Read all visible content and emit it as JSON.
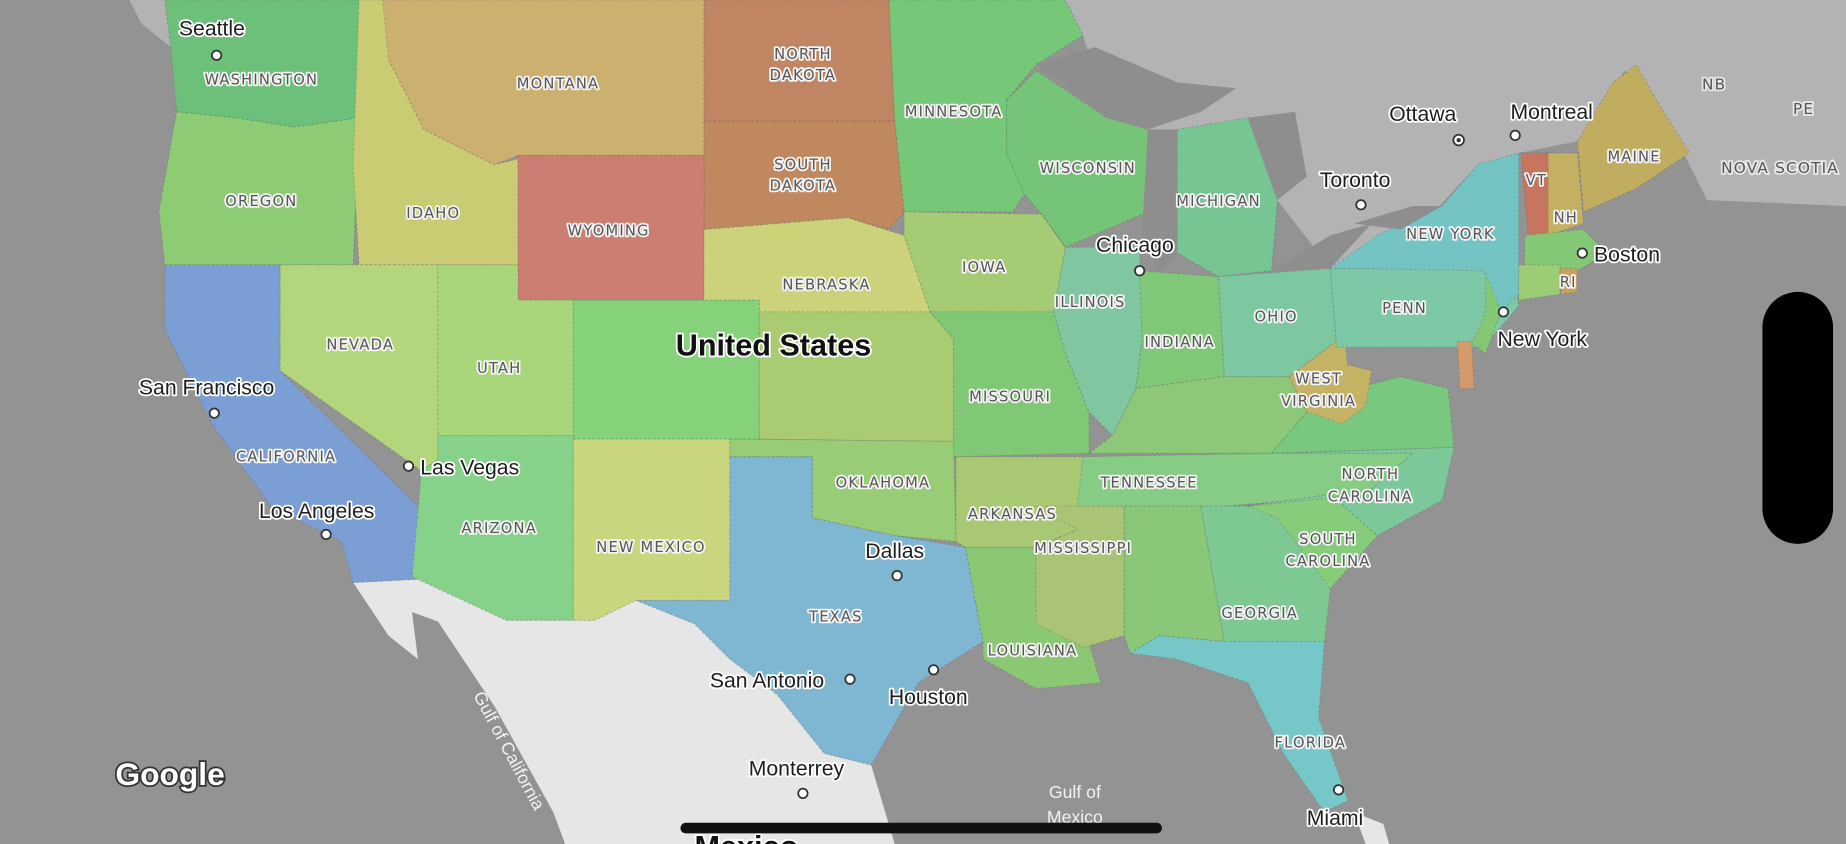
{
  "map": {
    "country_label": "United States",
    "bottom_country_label": "Mexico",
    "attribution": "Google",
    "colors": {
      "ocean": "#939393",
      "canada": "#b3b3b3",
      "lakes": "#8e8e8e",
      "mexico": "#e6e6e6"
    },
    "states": {
      "WA": {
        "label": "WASHINGTON",
        "color": "#6dc07a"
      },
      "OR": {
        "label": "OREGON",
        "color": "#8dcc75"
      },
      "CA": {
        "label": "CALIFORNIA",
        "color": "#7b9fd4"
      },
      "ID": {
        "label": "IDAHO",
        "color": "#c9cc72"
      },
      "MT": {
        "label": "MONTANA",
        "color": "#cbb070"
      },
      "ND": {
        "label": "NORTH DAKOTA",
        "color": "#c08563"
      },
      "SD": {
        "label": "SOUTH DAKOTA",
        "color": "#c0885f"
      },
      "WY": {
        "label": "WYOMING",
        "color": "#cd7e73"
      },
      "NE": {
        "label": "NEBRASKA",
        "color": "#cbd27a"
      },
      "NV": {
        "label": "NEVADA",
        "color": "#b3d67c"
      },
      "UT": {
        "label": "UTAH",
        "color": "#a9d67a"
      },
      "CO": {
        "color": "#85d27a"
      },
      "KS": {
        "color": "#a9cc72"
      },
      "AZ": {
        "label": "ARIZONA",
        "color": "#86d28a"
      },
      "NM": {
        "label": "NEW MEXICO",
        "color": "#cad67d"
      },
      "TX": {
        "label": "TEXAS",
        "color": "#7fb6d2"
      },
      "OK": {
        "label": "OKLAHOMA",
        "color": "#98cc76"
      },
      "MN": {
        "label": "MINNESOTA",
        "color": "#76c778"
      },
      "IA": {
        "label": "IOWA",
        "color": "#a5cc75"
      },
      "MO": {
        "label": "MISSOURI",
        "color": "#81c876"
      },
      "AR": {
        "label": "ARKANSAS",
        "color": "#a8c874"
      },
      "LA": {
        "label": "LOUISIANA",
        "color": "#8ac874"
      },
      "WI": {
        "label": "WISCONSIN",
        "color": "#76c478"
      },
      "IL": {
        "label": "ILLINOIS",
        "color": "#80c6a0"
      },
      "MI": {
        "label": "MICHIGAN",
        "color": "#78c594"
      },
      "IN": {
        "label": "INDIANA",
        "color": "#7ec878"
      },
      "OH": {
        "label": "OHIO",
        "color": "#7dc8a0"
      },
      "KY": {
        "color": "#8cc878"
      },
      "TN": {
        "label": "TENNESSEE",
        "color": "#86cc85"
      },
      "MS": {
        "label": "MISSISSIPPI",
        "color": "#a8c474"
      },
      "AL": {
        "color": "#88c878"
      },
      "GA": {
        "label": "GEORGIA",
        "color": "#7ec894"
      },
      "FL": {
        "label": "FLORIDA",
        "color": "#76c8c8"
      },
      "SC": {
        "label": "SOUTH CAROLINA",
        "color": "#86cc7a"
      },
      "NC": {
        "label": "NORTH CAROLINA",
        "color": "#7dc89a"
      },
      "VA": {
        "color": "#78c880"
      },
      "WV": {
        "label": "WEST VIRGINIA",
        "color": "#c4b364"
      },
      "PA": {
        "label": "PENN",
        "color": "#7dc8a6"
      },
      "NY": {
        "label": "NEW YORK",
        "color": "#75c4c4"
      },
      "NJ": {
        "color": "#84c876"
      },
      "DE": {
        "color": "#d59a6a"
      },
      "VT": {
        "label": "VT",
        "color": "#c8755f"
      },
      "NH": {
        "label": "NH",
        "color": "#c3b062"
      },
      "ME": {
        "label": "MAINE",
        "color": "#c0ad60"
      },
      "MA": {
        "color": "#84c876"
      },
      "CT": {
        "color": "#9ccc74"
      },
      "RI": {
        "label": "RI",
        "color": "#c8a060"
      }
    },
    "canada_labels": [
      "NB",
      "PE",
      "NOVA SCOTIA"
    ],
    "cities": [
      "Seattle",
      "San Francisco",
      "Las Vegas",
      "Los Angeles",
      "Dallas",
      "San Antonio",
      "Houston",
      "Monterrey",
      "Chicago",
      "Toronto",
      "Ottawa",
      "Montreal",
      "Boston",
      "New York",
      "Miami"
    ],
    "water_labels": [
      "Gulf of California",
      "Gulf of",
      "Mexico"
    ]
  }
}
